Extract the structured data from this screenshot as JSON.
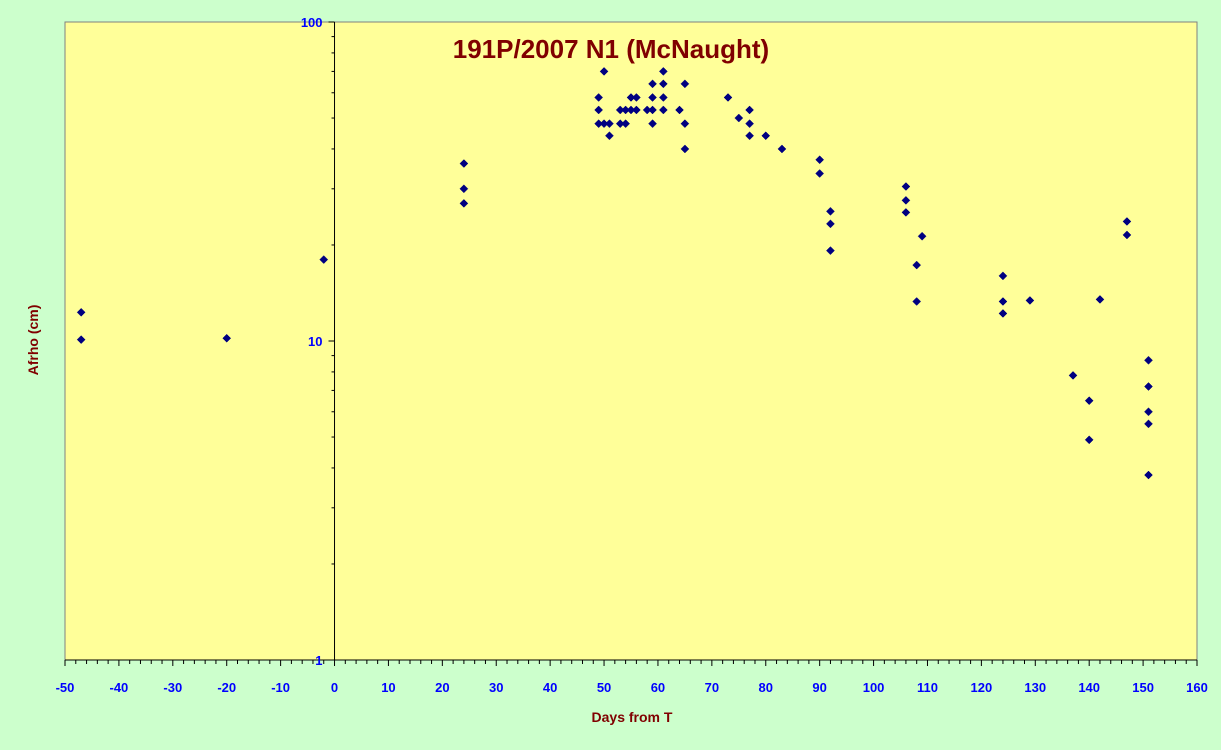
{
  "chart_data": {
    "type": "scatter",
    "title": "191P/2007 N1 (McNaught)",
    "xlabel": "Days from T",
    "ylabel": "Afrho (cm)",
    "xlim": [
      -50,
      160
    ],
    "ylim": [
      1,
      100
    ],
    "y_scale": "log",
    "x_ticks": [
      "-50",
      "-40",
      "-30",
      "-20",
      "-10",
      "0",
      "10",
      "20",
      "30",
      "40",
      "50",
      "60",
      "70",
      "80",
      "90",
      "100",
      "110",
      "120",
      "130",
      "140",
      "150",
      "160"
    ],
    "y_ticks": [
      "1",
      "10",
      "100"
    ],
    "grid": false,
    "legend": "none",
    "colors": {
      "background": "#ccffcc",
      "plot_area": "#ffff99",
      "marker": "#000080",
      "title": "#800000",
      "tick_labels": "#0000ff"
    },
    "series": [
      {
        "marker": "diamond",
        "points": [
          [
            -47,
            12.3
          ],
          [
            -47,
            10.1
          ],
          [
            -20,
            10.2
          ],
          [
            -2,
            18.0
          ],
          [
            24,
            36.0
          ],
          [
            24,
            30.0
          ],
          [
            24,
            27.0
          ],
          [
            49,
            58.0
          ],
          [
            49,
            53.0
          ],
          [
            49,
            48.0
          ],
          [
            50,
            70.0
          ],
          [
            50,
            48.0
          ],
          [
            51,
            48.0
          ],
          [
            51,
            44.0
          ],
          [
            53,
            53.0
          ],
          [
            53,
            48.0
          ],
          [
            54,
            53.0
          ],
          [
            54,
            48.0
          ],
          [
            55,
            58.0
          ],
          [
            55,
            53.0
          ],
          [
            56,
            58.0
          ],
          [
            56,
            53.0
          ],
          [
            58,
            53.0
          ],
          [
            59,
            64.0
          ],
          [
            59,
            58.0
          ],
          [
            59,
            53.0
          ],
          [
            59,
            48.0
          ],
          [
            61,
            70.0
          ],
          [
            61,
            64.0
          ],
          [
            61,
            58.0
          ],
          [
            61,
            53.0
          ],
          [
            64,
            53.0
          ],
          [
            65,
            64.0
          ],
          [
            65,
            48.0
          ],
          [
            65,
            40.0
          ],
          [
            73,
            58.0
          ],
          [
            75,
            50.0
          ],
          [
            77,
            53.0
          ],
          [
            77,
            48.0
          ],
          [
            77,
            44.0
          ],
          [
            80,
            44.0
          ],
          [
            83,
            40.0
          ],
          [
            90,
            37.0
          ],
          [
            90,
            33.5
          ],
          [
            92,
            25.5
          ],
          [
            92,
            23.3
          ],
          [
            92,
            19.2
          ],
          [
            106,
            30.5
          ],
          [
            106,
            27.6
          ],
          [
            106,
            25.3
          ],
          [
            108,
            17.3
          ],
          [
            108,
            13.3
          ],
          [
            109,
            21.3
          ],
          [
            124,
            16.0
          ],
          [
            124,
            13.3
          ],
          [
            124,
            12.2
          ],
          [
            129,
            13.4
          ],
          [
            137,
            7.8
          ],
          [
            140,
            6.5
          ],
          [
            140,
            4.9
          ],
          [
            142,
            13.5
          ],
          [
            147,
            23.7
          ],
          [
            147,
            21.5
          ],
          [
            151,
            8.7
          ],
          [
            151,
            7.2
          ],
          [
            151,
            6.0
          ],
          [
            151,
            5.5
          ],
          [
            151,
            3.8
          ]
        ]
      }
    ]
  }
}
